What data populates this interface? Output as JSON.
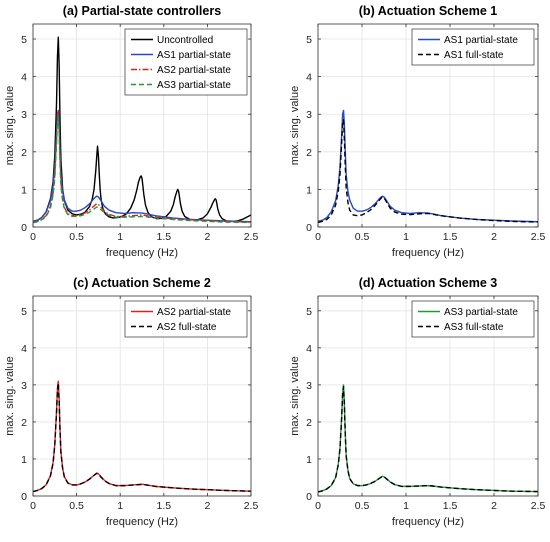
{
  "chart_data": [
    {
      "type": "line",
      "title": "(a) Partial-state controllers",
      "xlabel": "frequency (Hz)",
      "ylabel": "max. sing. value",
      "xlim": [
        0,
        2.5
      ],
      "ylim": [
        0,
        5.4
      ],
      "xticks": [
        "0",
        "0.5",
        "1",
        "1.5",
        "2",
        "2.5"
      ],
      "yticks": [
        "0",
        "1",
        "2",
        "3",
        "4",
        "5"
      ],
      "grid": true,
      "legend": "top-right",
      "series": [
        {
          "name": "Uncontrolled",
          "color": "#000000",
          "dash": "solid",
          "x": [
            0,
            0.05,
            0.1,
            0.15,
            0.2,
            0.23,
            0.25,
            0.27,
            0.28,
            0.29,
            0.3,
            0.31,
            0.32,
            0.34,
            0.36,
            0.4,
            0.45,
            0.5,
            0.55,
            0.6,
            0.65,
            0.68,
            0.7,
            0.72,
            0.73,
            0.74,
            0.75,
            0.76,
            0.77,
            0.78,
            0.8,
            0.83,
            0.87,
            0.92,
            0.97,
            1.02,
            1.07,
            1.12,
            1.16,
            1.19,
            1.21,
            1.23,
            1.24,
            1.25,
            1.26,
            1.27,
            1.29,
            1.32,
            1.36,
            1.42,
            1.48,
            1.53,
            1.58,
            1.61,
            1.63,
            1.65,
            1.66,
            1.67,
            1.68,
            1.69,
            1.71,
            1.74,
            1.8,
            1.88,
            1.95,
            2.0,
            2.04,
            2.06,
            2.08,
            2.09,
            2.1,
            2.11,
            2.12,
            2.14,
            2.17,
            2.22,
            2.28,
            2.34,
            2.4,
            2.45,
            2.5
          ],
          "y": [
            0.15,
            0.18,
            0.25,
            0.4,
            0.75,
            1.2,
            1.9,
            3.3,
            4.5,
            5.05,
            4.3,
            2.8,
            1.8,
            1.0,
            0.7,
            0.45,
            0.35,
            0.32,
            0.34,
            0.4,
            0.55,
            0.75,
            1.0,
            1.5,
            1.85,
            2.15,
            1.9,
            1.4,
            1.0,
            0.75,
            0.5,
            0.35,
            0.27,
            0.24,
            0.25,
            0.28,
            0.35,
            0.5,
            0.72,
            0.98,
            1.2,
            1.33,
            1.36,
            1.3,
            1.1,
            0.88,
            0.58,
            0.38,
            0.27,
            0.22,
            0.23,
            0.29,
            0.42,
            0.6,
            0.8,
            0.95,
            1.0,
            0.95,
            0.8,
            0.63,
            0.42,
            0.28,
            0.2,
            0.19,
            0.24,
            0.35,
            0.52,
            0.63,
            0.72,
            0.75,
            0.72,
            0.6,
            0.47,
            0.32,
            0.22,
            0.16,
            0.15,
            0.16,
            0.2,
            0.26,
            0.32
          ]
        },
        {
          "name": "AS1 partial-state",
          "color": "#2848c8",
          "dash": "solid",
          "x": [
            0,
            0.05,
            0.1,
            0.15,
            0.2,
            0.23,
            0.25,
            0.27,
            0.28,
            0.29,
            0.3,
            0.31,
            0.32,
            0.34,
            0.36,
            0.4,
            0.45,
            0.5,
            0.55,
            0.6,
            0.65,
            0.7,
            0.73,
            0.75,
            0.78,
            0.82,
            0.87,
            0.95,
            1.05,
            1.15,
            1.25,
            1.3,
            1.4,
            1.6,
            1.8,
            2.0,
            2.2,
            2.5
          ],
          "y": [
            0.15,
            0.18,
            0.25,
            0.4,
            0.7,
            1.1,
            1.6,
            2.5,
            3.0,
            3.1,
            2.7,
            2.0,
            1.4,
            0.95,
            0.72,
            0.5,
            0.42,
            0.42,
            0.45,
            0.52,
            0.62,
            0.76,
            0.82,
            0.8,
            0.7,
            0.55,
            0.45,
            0.38,
            0.36,
            0.38,
            0.37,
            0.35,
            0.3,
            0.24,
            0.2,
            0.18,
            0.16,
            0.14
          ]
        },
        {
          "name": "AS2 partial-state",
          "color": "#e02020",
          "dash": "dashdot",
          "x": [
            0,
            0.05,
            0.1,
            0.15,
            0.2,
            0.23,
            0.25,
            0.27,
            0.28,
            0.29,
            0.3,
            0.31,
            0.32,
            0.34,
            0.36,
            0.4,
            0.45,
            0.5,
            0.55,
            0.6,
            0.65,
            0.7,
            0.73,
            0.75,
            0.78,
            0.82,
            0.87,
            0.95,
            1.05,
            1.15,
            1.25,
            1.3,
            1.4,
            1.6,
            1.8,
            2.0,
            2.2,
            2.5
          ],
          "y": [
            0.12,
            0.15,
            0.2,
            0.3,
            0.55,
            0.9,
            1.4,
            2.3,
            2.9,
            3.1,
            2.6,
            1.8,
            1.2,
            0.75,
            0.52,
            0.35,
            0.3,
            0.3,
            0.33,
            0.38,
            0.46,
            0.56,
            0.62,
            0.6,
            0.52,
            0.42,
            0.34,
            0.28,
            0.28,
            0.3,
            0.32,
            0.3,
            0.26,
            0.22,
            0.19,
            0.17,
            0.15,
            0.13
          ]
        },
        {
          "name": "AS3 partial-state",
          "color": "#1f9a3a",
          "dash": "dashed",
          "x": [
            0,
            0.05,
            0.1,
            0.15,
            0.2,
            0.23,
            0.25,
            0.27,
            0.28,
            0.29,
            0.3,
            0.31,
            0.32,
            0.34,
            0.36,
            0.4,
            0.45,
            0.5,
            0.55,
            0.6,
            0.65,
            0.7,
            0.73,
            0.75,
            0.78,
            0.82,
            0.87,
            0.95,
            1.05,
            1.15,
            1.25,
            1.3,
            1.4,
            1.6,
            1.8,
            2.0,
            2.2,
            2.5
          ],
          "y": [
            0.11,
            0.14,
            0.19,
            0.28,
            0.5,
            0.85,
            1.3,
            2.2,
            2.8,
            3.0,
            2.5,
            1.7,
            1.1,
            0.7,
            0.48,
            0.33,
            0.28,
            0.28,
            0.3,
            0.34,
            0.4,
            0.48,
            0.53,
            0.52,
            0.46,
            0.38,
            0.31,
            0.26,
            0.26,
            0.27,
            0.28,
            0.27,
            0.24,
            0.2,
            0.17,
            0.15,
            0.13,
            0.12
          ]
        }
      ]
    },
    {
      "type": "line",
      "title": "(b) Actuation Scheme 1",
      "xlabel": "frequency (Hz)",
      "ylabel": "max. sing. value",
      "xlim": [
        0,
        2.5
      ],
      "ylim": [
        0,
        5.4
      ],
      "xticks": [
        "0",
        "0.5",
        "1",
        "1.5",
        "2",
        "2.5"
      ],
      "yticks": [
        "0",
        "1",
        "2",
        "3",
        "4",
        "5"
      ],
      "grid": true,
      "legend": "top-right",
      "series": [
        {
          "name": "AS1 partial-state",
          "color": "#2848c8",
          "dash": "solid",
          "x": [
            0,
            0.05,
            0.1,
            0.15,
            0.2,
            0.23,
            0.25,
            0.27,
            0.28,
            0.29,
            0.3,
            0.31,
            0.32,
            0.34,
            0.36,
            0.4,
            0.45,
            0.5,
            0.55,
            0.6,
            0.65,
            0.7,
            0.73,
            0.75,
            0.78,
            0.82,
            0.87,
            0.95,
            1.05,
            1.15,
            1.25,
            1.3,
            1.4,
            1.6,
            1.8,
            2.0,
            2.2,
            2.5
          ],
          "y": [
            0.15,
            0.18,
            0.25,
            0.4,
            0.7,
            1.1,
            1.6,
            2.5,
            3.0,
            3.1,
            2.7,
            2.0,
            1.4,
            0.95,
            0.72,
            0.5,
            0.42,
            0.42,
            0.45,
            0.52,
            0.62,
            0.76,
            0.82,
            0.8,
            0.7,
            0.55,
            0.45,
            0.38,
            0.36,
            0.38,
            0.37,
            0.35,
            0.3,
            0.24,
            0.2,
            0.18,
            0.16,
            0.14
          ]
        },
        {
          "name": "AS1 full-state",
          "color": "#000000",
          "dash": "dashed",
          "x": [
            0,
            0.05,
            0.1,
            0.15,
            0.2,
            0.23,
            0.25,
            0.27,
            0.28,
            0.29,
            0.3,
            0.31,
            0.32,
            0.34,
            0.36,
            0.4,
            0.45,
            0.5,
            0.55,
            0.6,
            0.65,
            0.7,
            0.73,
            0.75,
            0.78,
            0.82,
            0.87,
            0.95,
            1.05,
            1.15,
            1.25,
            1.3,
            1.4,
            1.6,
            1.8,
            2.0,
            2.2,
            2.5
          ],
          "y": [
            0.12,
            0.15,
            0.2,
            0.32,
            0.58,
            0.95,
            1.4,
            2.3,
            2.75,
            2.85,
            2.3,
            1.6,
            1.05,
            0.65,
            0.45,
            0.32,
            0.3,
            0.32,
            0.38,
            0.46,
            0.58,
            0.72,
            0.8,
            0.78,
            0.66,
            0.5,
            0.4,
            0.34,
            0.33,
            0.35,
            0.36,
            0.34,
            0.3,
            0.24,
            0.2,
            0.17,
            0.15,
            0.13
          ]
        }
      ]
    },
    {
      "type": "line",
      "title": "(c) Actuation Scheme 2",
      "xlabel": "frequency (Hz)",
      "ylabel": "max. sing. value",
      "xlim": [
        0,
        2.5
      ],
      "ylim": [
        0,
        5.4
      ],
      "xticks": [
        "0",
        "0.5",
        "1",
        "1.5",
        "2",
        "2.5"
      ],
      "yticks": [
        "0",
        "1",
        "2",
        "3",
        "4",
        "5"
      ],
      "grid": true,
      "legend": "top-right",
      "series": [
        {
          "name": "AS2 partial-state",
          "color": "#e02020",
          "dash": "solid",
          "x": [
            0,
            0.05,
            0.1,
            0.15,
            0.2,
            0.23,
            0.25,
            0.27,
            0.28,
            0.29,
            0.3,
            0.31,
            0.32,
            0.34,
            0.36,
            0.4,
            0.45,
            0.5,
            0.55,
            0.6,
            0.65,
            0.7,
            0.73,
            0.75,
            0.78,
            0.82,
            0.87,
            0.95,
            1.05,
            1.15,
            1.25,
            1.3,
            1.4,
            1.6,
            1.8,
            2.0,
            2.2,
            2.5
          ],
          "y": [
            0.12,
            0.15,
            0.2,
            0.3,
            0.55,
            0.9,
            1.4,
            2.3,
            2.9,
            3.1,
            2.6,
            1.8,
            1.2,
            0.75,
            0.52,
            0.35,
            0.3,
            0.3,
            0.33,
            0.38,
            0.46,
            0.56,
            0.62,
            0.6,
            0.52,
            0.42,
            0.34,
            0.28,
            0.28,
            0.3,
            0.32,
            0.3,
            0.26,
            0.22,
            0.19,
            0.17,
            0.15,
            0.13
          ]
        },
        {
          "name": "AS2 full-state",
          "color": "#000000",
          "dash": "dashed",
          "x": [
            0,
            0.05,
            0.1,
            0.15,
            0.2,
            0.23,
            0.25,
            0.27,
            0.28,
            0.29,
            0.3,
            0.31,
            0.32,
            0.34,
            0.36,
            0.4,
            0.45,
            0.5,
            0.55,
            0.6,
            0.65,
            0.7,
            0.73,
            0.75,
            0.78,
            0.82,
            0.87,
            0.95,
            1.05,
            1.15,
            1.25,
            1.3,
            1.4,
            1.6,
            1.8,
            2.0,
            2.2,
            2.5
          ],
          "y": [
            0.12,
            0.15,
            0.2,
            0.3,
            0.54,
            0.88,
            1.38,
            2.25,
            2.85,
            3.05,
            2.55,
            1.75,
            1.18,
            0.74,
            0.51,
            0.35,
            0.3,
            0.3,
            0.33,
            0.38,
            0.46,
            0.56,
            0.61,
            0.59,
            0.51,
            0.41,
            0.34,
            0.28,
            0.28,
            0.3,
            0.31,
            0.3,
            0.26,
            0.22,
            0.19,
            0.17,
            0.15,
            0.13
          ]
        }
      ]
    },
    {
      "type": "line",
      "title": "(d) Actuation Scheme 3",
      "xlabel": "frequency (Hz)",
      "ylabel": "max. sing. value",
      "xlim": [
        0,
        2.5
      ],
      "ylim": [
        0,
        5.4
      ],
      "xticks": [
        "0",
        "0.5",
        "1",
        "1.5",
        "2",
        "2.5"
      ],
      "yticks": [
        "0",
        "1",
        "2",
        "3",
        "4",
        "5"
      ],
      "grid": true,
      "legend": "top-right",
      "series": [
        {
          "name": "AS3 partial-state",
          "color": "#1f9a3a",
          "dash": "solid",
          "x": [
            0,
            0.05,
            0.1,
            0.15,
            0.2,
            0.23,
            0.25,
            0.27,
            0.28,
            0.29,
            0.3,
            0.31,
            0.32,
            0.34,
            0.36,
            0.4,
            0.45,
            0.5,
            0.55,
            0.6,
            0.65,
            0.7,
            0.73,
            0.75,
            0.78,
            0.82,
            0.87,
            0.95,
            1.05,
            1.15,
            1.25,
            1.3,
            1.4,
            1.6,
            1.8,
            2.0,
            2.2,
            2.5
          ],
          "y": [
            0.11,
            0.14,
            0.19,
            0.28,
            0.5,
            0.85,
            1.3,
            2.2,
            2.8,
            3.0,
            2.5,
            1.7,
            1.1,
            0.7,
            0.48,
            0.33,
            0.28,
            0.28,
            0.3,
            0.34,
            0.4,
            0.48,
            0.53,
            0.52,
            0.46,
            0.38,
            0.31,
            0.26,
            0.26,
            0.27,
            0.28,
            0.27,
            0.24,
            0.2,
            0.17,
            0.15,
            0.13,
            0.12
          ]
        },
        {
          "name": "AS3 full-state",
          "color": "#000000",
          "dash": "dashed",
          "x": [
            0,
            0.05,
            0.1,
            0.15,
            0.2,
            0.23,
            0.25,
            0.27,
            0.28,
            0.29,
            0.3,
            0.31,
            0.32,
            0.34,
            0.36,
            0.4,
            0.45,
            0.5,
            0.55,
            0.6,
            0.65,
            0.7,
            0.73,
            0.75,
            0.78,
            0.82,
            0.87,
            0.95,
            1.05,
            1.15,
            1.25,
            1.3,
            1.4,
            1.6,
            1.8,
            2.0,
            2.2,
            2.5
          ],
          "y": [
            0.11,
            0.14,
            0.19,
            0.28,
            0.49,
            0.84,
            1.28,
            2.15,
            2.75,
            2.95,
            2.45,
            1.66,
            1.08,
            0.69,
            0.47,
            0.33,
            0.28,
            0.28,
            0.3,
            0.34,
            0.4,
            0.48,
            0.53,
            0.52,
            0.46,
            0.38,
            0.31,
            0.26,
            0.26,
            0.27,
            0.28,
            0.27,
            0.24,
            0.2,
            0.17,
            0.15,
            0.13,
            0.12
          ]
        }
      ]
    }
  ]
}
